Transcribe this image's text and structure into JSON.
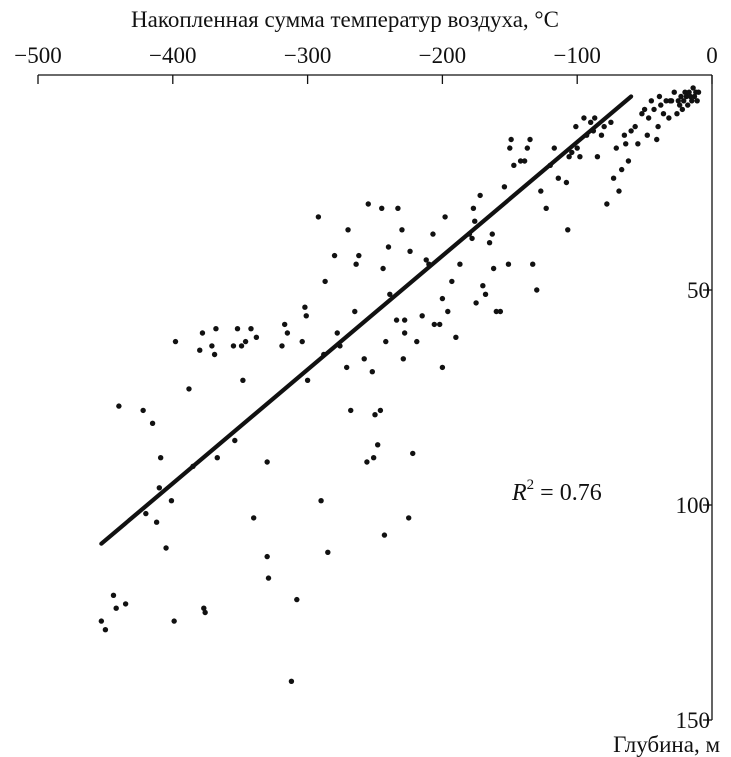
{
  "chart_data": {
    "type": "scatter",
    "xlabel": "Накопленная сумма температур воздуха, °C",
    "ylabel": "Глубина, м",
    "x_axis_position": "top",
    "y_axis_position": "right",
    "y_inverted": true,
    "xlim": [
      -500,
      0
    ],
    "ylim": [
      0,
      150
    ],
    "x_ticks": [
      -500,
      -400,
      -300,
      -200,
      -100,
      0
    ],
    "y_ticks": [
      50,
      100,
      150
    ],
    "x_tick_labels": [
      "−500",
      "−400",
      "−300",
      "−200",
      "−100",
      "0"
    ],
    "y_tick_labels": [
      "50",
      "100",
      "150"
    ],
    "grid": false,
    "annotation": {
      "base": "R",
      "sup": "2",
      "rest": " = 0.76"
    },
    "fit_line": {
      "x": [
        -453,
        -60
      ],
      "y": [
        109,
        5
      ]
    },
    "points": [
      [
        -453,
        127
      ],
      [
        -450,
        129
      ],
      [
        -444,
        121
      ],
      [
        -442,
        124
      ],
      [
        -440,
        77
      ],
      [
        -435,
        123
      ],
      [
        -422,
        78
      ],
      [
        -420,
        102
      ],
      [
        -415,
        81
      ],
      [
        -412,
        104
      ],
      [
        -410,
        96
      ],
      [
        -409,
        89
      ],
      [
        -405,
        110
      ],
      [
        -401,
        99
      ],
      [
        -399,
        127
      ],
      [
        -398,
        62
      ],
      [
        -388,
        73
      ],
      [
        -385,
        91
      ],
      [
        -380,
        64
      ],
      [
        -378,
        60
      ],
      [
        -377,
        124
      ],
      [
        -376,
        125
      ],
      [
        -371,
        63
      ],
      [
        -369,
        65
      ],
      [
        -368,
        59
      ],
      [
        -367,
        89
      ],
      [
        -355,
        63
      ],
      [
        -354,
        85
      ],
      [
        -352,
        59
      ],
      [
        -349,
        63
      ],
      [
        -348,
        71
      ],
      [
        -346,
        62
      ],
      [
        -342,
        59
      ],
      [
        -340,
        103
      ],
      [
        -338,
        61
      ],
      [
        -330,
        90
      ],
      [
        -330,
        112
      ],
      [
        -329,
        117
      ],
      [
        -319,
        63
      ],
      [
        -317,
        58
      ],
      [
        -315,
        60
      ],
      [
        -312,
        141
      ],
      [
        -308,
        122
      ],
      [
        -304,
        62
      ],
      [
        -302,
        54
      ],
      [
        -301,
        56
      ],
      [
        -300,
        71
      ],
      [
        -292,
        33
      ],
      [
        -290,
        99
      ],
      [
        -288,
        65
      ],
      [
        -287,
        48
      ],
      [
        -285,
        111
      ],
      [
        -280,
        42
      ],
      [
        -278,
        60
      ],
      [
        -276,
        63
      ],
      [
        -271,
        68
      ],
      [
        -270,
        36
      ],
      [
        -268,
        78
      ],
      [
        -265,
        55
      ],
      [
        -264,
        44
      ],
      [
        -262,
        42
      ],
      [
        -258,
        66
      ],
      [
        -256,
        90
      ],
      [
        -255,
        30
      ],
      [
        -252,
        69
      ],
      [
        -251,
        89
      ],
      [
        -250,
        79
      ],
      [
        -248,
        86
      ],
      [
        -246,
        78
      ],
      [
        -245,
        31
      ],
      [
        -244,
        45
      ],
      [
        -243,
        107
      ],
      [
        -242,
        62
      ],
      [
        -240,
        40
      ],
      [
        -239,
        51
      ],
      [
        -234,
        57
      ],
      [
        -233,
        31
      ],
      [
        -230,
        36
      ],
      [
        -229,
        66
      ],
      [
        -228,
        57
      ],
      [
        -228,
        60
      ],
      [
        -225,
        103
      ],
      [
        -224,
        41
      ],
      [
        -222,
        88
      ],
      [
        -219,
        62
      ],
      [
        -215,
        56
      ],
      [
        -212,
        43
      ],
      [
        -210,
        44
      ],
      [
        -207,
        37
      ],
      [
        -206,
        58
      ],
      [
        -202,
        58
      ],
      [
        -200,
        68
      ],
      [
        -200,
        52
      ],
      [
        -198,
        33
      ],
      [
        -196,
        55
      ],
      [
        -193,
        48
      ],
      [
        -190,
        61
      ],
      [
        -187,
        44
      ],
      [
        -180,
        37
      ],
      [
        -178,
        38
      ],
      [
        -177,
        31
      ],
      [
        -176,
        34
      ],
      [
        -175,
        53
      ],
      [
        -172,
        28
      ],
      [
        -170,
        49
      ],
      [
        -168,
        51
      ],
      [
        -165,
        39
      ],
      [
        -163,
        37
      ],
      [
        -162,
        45
      ],
      [
        -160,
        55
      ],
      [
        -157,
        55
      ],
      [
        -154,
        26
      ],
      [
        -151,
        44
      ],
      [
        -150,
        17
      ],
      [
        -149,
        15
      ],
      [
        -147,
        21
      ],
      [
        -142,
        20
      ],
      [
        -139,
        20
      ],
      [
        -137,
        17
      ],
      [
        -135,
        15
      ],
      [
        -133,
        44
      ],
      [
        -130,
        50
      ],
      [
        -127,
        27
      ],
      [
        -123,
        31
      ],
      [
        -120,
        21
      ],
      [
        -117,
        17
      ],
      [
        -114,
        24
      ],
      [
        -108,
        25
      ],
      [
        -107,
        36
      ],
      [
        -106,
        19
      ],
      [
        -104,
        18
      ],
      [
        -101,
        12
      ],
      [
        -100,
        17
      ],
      [
        -98,
        19
      ],
      [
        -95,
        10
      ],
      [
        -93,
        14
      ],
      [
        -90,
        11
      ],
      [
        -88,
        13
      ],
      [
        -87,
        10
      ],
      [
        -85,
        19
      ],
      [
        -82,
        14
      ],
      [
        -80,
        12
      ],
      [
        -78,
        30
      ],
      [
        -75,
        11
      ],
      [
        -73,
        24
      ],
      [
        -71,
        17
      ],
      [
        -69,
        27
      ],
      [
        -67,
        22
      ],
      [
        -65,
        14
      ],
      [
        -64,
        16
      ],
      [
        -62,
        20
      ],
      [
        -60,
        13
      ],
      [
        -57,
        12
      ],
      [
        -55,
        16
      ],
      [
        -52,
        9
      ],
      [
        -50,
        8
      ],
      [
        -48,
        14
      ],
      [
        -47,
        10
      ],
      [
        -45,
        6
      ],
      [
        -43,
        8
      ],
      [
        -41,
        15
      ],
      [
        -40,
        12
      ],
      [
        -39,
        5
      ],
      [
        -38,
        7
      ],
      [
        -36,
        9
      ],
      [
        -34,
        6
      ],
      [
        -32,
        10
      ],
      [
        -31,
        6
      ],
      [
        -30,
        6
      ],
      [
        -28,
        4
      ],
      [
        -26,
        9
      ],
      [
        -25,
        6
      ],
      [
        -24,
        7
      ],
      [
        -23,
        5
      ],
      [
        -22,
        8
      ],
      [
        -21,
        6
      ],
      [
        -20,
        4
      ],
      [
        -19,
        5
      ],
      [
        -18,
        7
      ],
      [
        -17,
        4
      ],
      [
        -16,
        5
      ],
      [
        -15,
        6
      ],
      [
        -14,
        3
      ],
      [
        -13,
        5
      ],
      [
        -12,
        4
      ],
      [
        -11,
        6
      ],
      [
        -10,
        4
      ]
    ]
  }
}
